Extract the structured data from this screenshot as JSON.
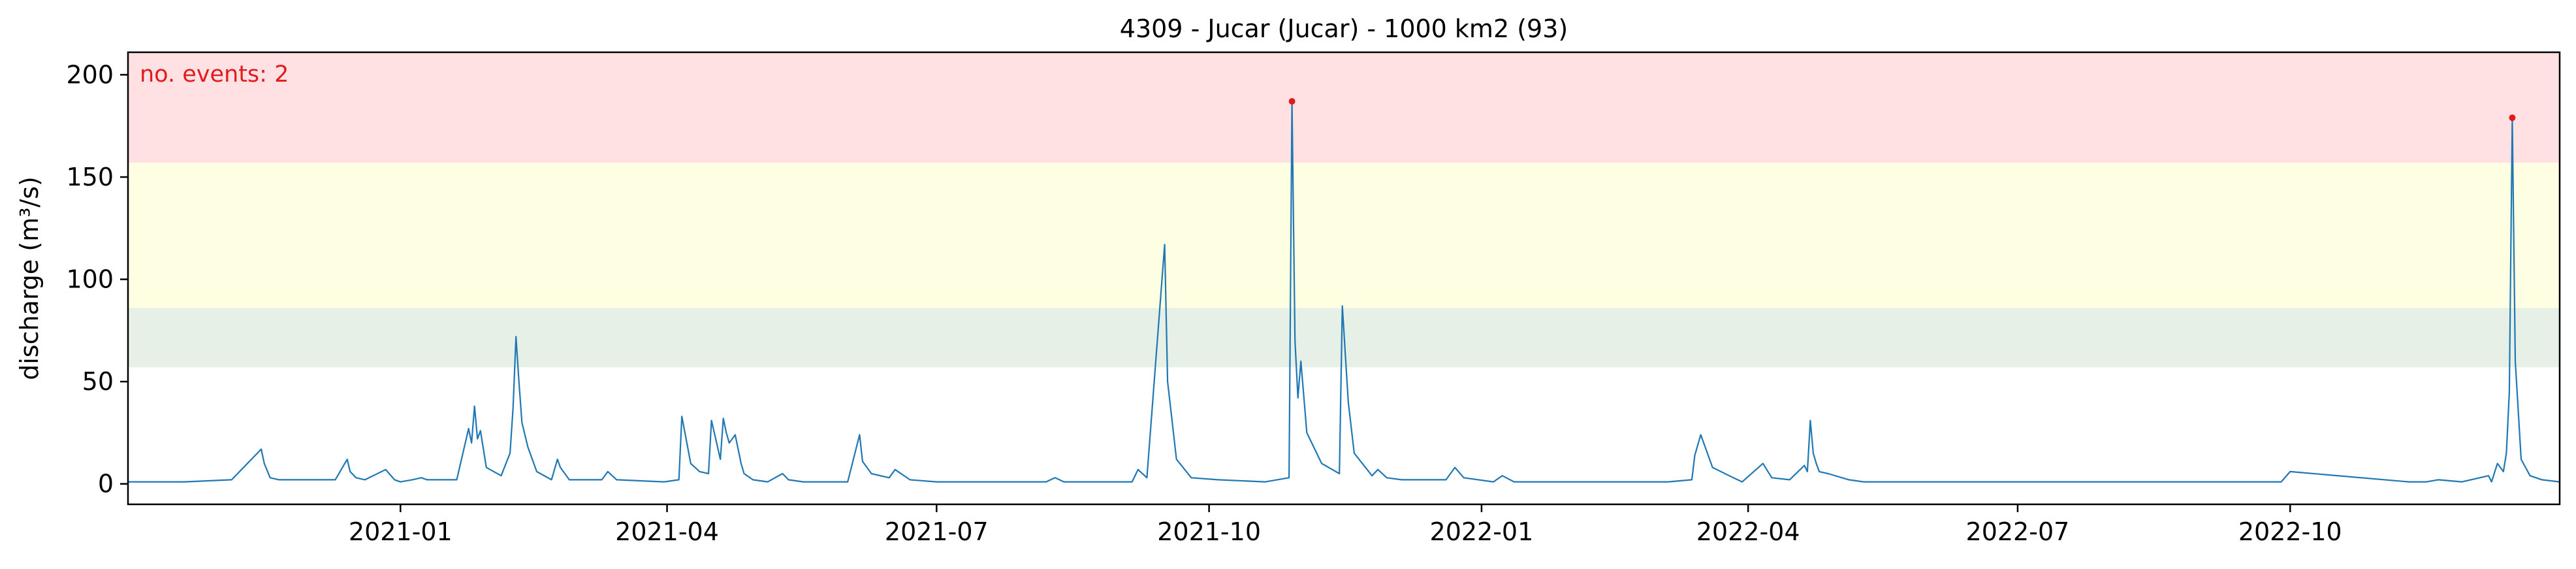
{
  "chart_data": {
    "type": "line",
    "title": "4309 - Jucar (Jucar) - 1000 km2 (93)",
    "xlabel": "",
    "ylabel": "discharge (m³/s)",
    "xlim": [
      "2020-10-01",
      "2022-12-31"
    ],
    "ylim": [
      -10,
      211
    ],
    "yticks": [
      0,
      50,
      100,
      150,
      200
    ],
    "xticks": [
      "2021-01-01",
      "2021-04-01",
      "2021-07-01",
      "2021-10-01",
      "2022-01-01",
      "2022-04-01",
      "2022-07-01",
      "2022-10-01"
    ],
    "xtick_labels": [
      "2021-01",
      "2021-04",
      "2021-07",
      "2021-10",
      "2022-01",
      "2022-04",
      "2022-07",
      "2022-10"
    ],
    "grid": false,
    "legend": null,
    "line_color": "#1f77b4",
    "threshold_bands": [
      {
        "from": 57,
        "to": 86,
        "color": "#e6f0e6"
      },
      {
        "from": 86,
        "to": 157,
        "color": "#fefee2"
      },
      {
        "from": 157,
        "to": 211,
        "color": "#ffe1e4"
      }
    ],
    "annotation": {
      "text": "no. events: 2",
      "color": "#e31a1c",
      "position": "top-left"
    },
    "events": [
      {
        "x": "2021-10-29",
        "y": 187
      },
      {
        "x": "2022-12-15",
        "y": 179
      }
    ],
    "event_marker_color": "#e31a1c",
    "series": [
      {
        "x": [
          "2020-10-01",
          "2020-10-20",
          "2020-11-05",
          "2020-11-15",
          "2020-11-16",
          "2020-11-18",
          "2020-11-21",
          "2020-11-25",
          "2020-12-10",
          "2020-12-14",
          "2020-12-15",
          "2020-12-17",
          "2020-12-20",
          "2020-12-27",
          "2020-12-30",
          "2021-01-01",
          "2021-01-05",
          "2021-01-08",
          "2021-01-10",
          "2021-01-20",
          "2021-01-24",
          "2021-01-25",
          "2021-01-26",
          "2021-01-27",
          "2021-01-28",
          "2021-01-30",
          "2021-02-04",
          "2021-02-07",
          "2021-02-08",
          "2021-02-09",
          "2021-02-10",
          "2021-02-11",
          "2021-02-13",
          "2021-02-16",
          "2021-02-21",
          "2021-02-23",
          "2021-02-24",
          "2021-02-27",
          "2021-03-10",
          "2021-03-12",
          "2021-03-15",
          "2021-03-31",
          "2021-04-05",
          "2021-04-06",
          "2021-04-09",
          "2021-04-12",
          "2021-04-15",
          "2021-04-16",
          "2021-04-19",
          "2021-04-20",
          "2021-04-21",
          "2021-04-22",
          "2021-04-24",
          "2021-04-26",
          "2021-04-27",
          "2021-04-30",
          "2021-05-05",
          "2021-05-10",
          "2021-05-12",
          "2021-05-17",
          "2021-06-01",
          "2021-06-05",
          "2021-06-06",
          "2021-06-09",
          "2021-06-15",
          "2021-06-17",
          "2021-06-22",
          "2021-07-01",
          "2021-08-07",
          "2021-08-10",
          "2021-08-13",
          "2021-09-05",
          "2021-09-07",
          "2021-09-10",
          "2021-09-16",
          "2021-09-17",
          "2021-09-20",
          "2021-09-25",
          "2021-10-04",
          "2021-10-20",
          "2021-10-28",
          "2021-10-29",
          "2021-10-30",
          "2021-10-31",
          "2021-11-01",
          "2021-11-03",
          "2021-11-08",
          "2021-11-14",
          "2021-11-15",
          "2021-11-17",
          "2021-11-19",
          "2021-11-25",
          "2021-11-27",
          "2021-11-30",
          "2021-12-05",
          "2021-12-20",
          "2021-12-23",
          "2021-12-26",
          "2022-01-05",
          "2022-01-08",
          "2022-01-12",
          "2022-03-05",
          "2022-03-13",
          "2022-03-14",
          "2022-03-16",
          "2022-03-20",
          "2022-03-27",
          "2022-03-30",
          "2022-04-06",
          "2022-04-09",
          "2022-04-15",
          "2022-04-20",
          "2022-04-21",
          "2022-04-22",
          "2022-04-23",
          "2022-04-24",
          "2022-04-25",
          "2022-04-28",
          "2022-05-05",
          "2022-05-10",
          "2022-05-15",
          "2022-07-01",
          "2022-09-25",
          "2022-09-28",
          "2022-10-01",
          "2022-11-10",
          "2022-11-14",
          "2022-11-16",
          "2022-11-20",
          "2022-11-28",
          "2022-12-07",
          "2022-12-08",
          "2022-12-10",
          "2022-12-12",
          "2022-12-13",
          "2022-12-14",
          "2022-12-15",
          "2022-12-16",
          "2022-12-18",
          "2022-12-21",
          "2022-12-25",
          "2022-12-31"
        ],
        "y": [
          1,
          1,
          2,
          17,
          10,
          3,
          2,
          2,
          2,
          12,
          6,
          3,
          2,
          7,
          2,
          1,
          2,
          3,
          2,
          2,
          27,
          20,
          38,
          22,
          26,
          8,
          4,
          15,
          37,
          72,
          50,
          30,
          18,
          6,
          2,
          12,
          8,
          2,
          2,
          6,
          2,
          1,
          2,
          33,
          10,
          6,
          5,
          31,
          12,
          32,
          25,
          20,
          24,
          10,
          5,
          2,
          1,
          5,
          2,
          1,
          1,
          24,
          11,
          5,
          3,
          7,
          2,
          1,
          1,
          3,
          1,
          1,
          7,
          3,
          117,
          50,
          12,
          3,
          2,
          1,
          3,
          187,
          70,
          42,
          60,
          25,
          10,
          5,
          87,
          40,
          15,
          4,
          7,
          3,
          2,
          2,
          8,
          3,
          1,
          4,
          1,
          1,
          2,
          14,
          24,
          8,
          3,
          1,
          10,
          3,
          2,
          9,
          6,
          31,
          15,
          10,
          6,
          5,
          2,
          1,
          1,
          1,
          1,
          1,
          6,
          1,
          1,
          1,
          2,
          1,
          4,
          1,
          10,
          6,
          15,
          45,
          179,
          60,
          12,
          4,
          2,
          1
        ]
      }
    ]
  }
}
